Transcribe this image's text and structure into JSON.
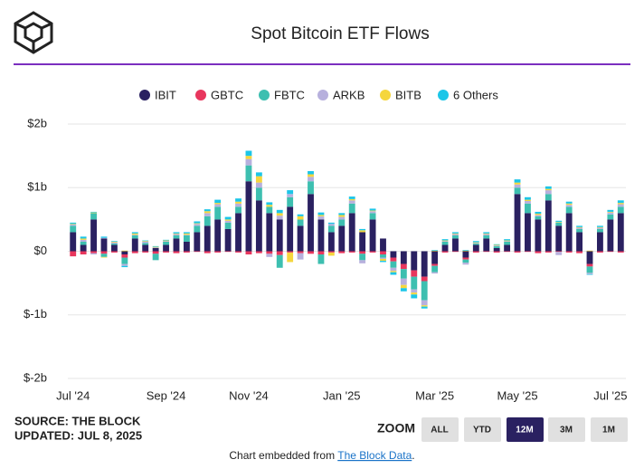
{
  "chart_data": {
    "type": "stacked_bar",
    "title": "Spot Bitcoin ETF Flows",
    "categories": [
      "Jul '24",
      null,
      null,
      null,
      null,
      null,
      null,
      null,
      null,
      "Sep '24",
      null,
      null,
      null,
      null,
      null,
      null,
      null,
      "Nov '24",
      null,
      null,
      null,
      null,
      null,
      null,
      null,
      null,
      "Jan '25",
      null,
      null,
      null,
      null,
      null,
      null,
      null,
      null,
      "Mar '25",
      null,
      null,
      null,
      null,
      null,
      null,
      null,
      "May '25",
      null,
      null,
      null,
      null,
      null,
      null,
      null,
      null,
      "Jul '25",
      null
    ],
    "series": [
      {
        "name": "IBIT",
        "color": "#2a2161",
        "values": [
          0.3,
          0.1,
          0.5,
          0.2,
          0.1,
          -0.05,
          0.2,
          0.1,
          0.05,
          0.1,
          0.2,
          0.15,
          0.3,
          0.4,
          0.5,
          0.35,
          0.6,
          1.1,
          0.8,
          0.6,
          0.5,
          0.7,
          0.4,
          0.9,
          0.5,
          0.3,
          0.4,
          0.6,
          0.3,
          0.5,
          0.2,
          -0.1,
          -0.2,
          -0.3,
          -0.4,
          -0.2,
          0.1,
          0.2,
          -0.1,
          0.1,
          0.2,
          0.05,
          0.1,
          0.9,
          0.6,
          0.5,
          0.8,
          0.4,
          0.6,
          0.3,
          -0.2,
          0.3,
          0.5,
          0.6
        ]
      },
      {
        "name": "GBTC",
        "color": "#e8365d",
        "values": [
          -0.08,
          -0.05,
          -0.03,
          -0.04,
          -0.02,
          -0.05,
          -0.03,
          -0.02,
          -0.04,
          -0.02,
          -0.03,
          -0.02,
          -0.01,
          -0.03,
          -0.02,
          -0.01,
          -0.02,
          -0.05,
          -0.03,
          -0.04,
          -0.06,
          -0.02,
          -0.03,
          -0.04,
          -0.05,
          -0.02,
          -0.03,
          -0.02,
          -0.04,
          -0.02,
          -0.05,
          -0.06,
          -0.08,
          -0.1,
          -0.07,
          -0.03,
          -0.02,
          -0.01,
          -0.03,
          -0.02,
          -0.01,
          -0.02,
          -0.01,
          -0.02,
          -0.01,
          -0.03,
          -0.02,
          -0.01,
          -0.02,
          -0.03,
          -0.04,
          -0.02,
          -0.01,
          -0.02
        ]
      },
      {
        "name": "FBTC",
        "color": "#3dbfb0",
        "values": [
          0.1,
          0.05,
          0.1,
          -0.05,
          0.02,
          -0.1,
          0.05,
          0.03,
          -0.1,
          0.05,
          0.05,
          0.1,
          0.1,
          0.15,
          0.2,
          0.1,
          0.1,
          0.25,
          0.2,
          0.1,
          -0.2,
          0.15,
          0.1,
          0.2,
          -0.15,
          0.1,
          0.1,
          0.15,
          -0.1,
          0.1,
          -0.05,
          -0.1,
          -0.15,
          -0.2,
          -0.3,
          -0.1,
          0.05,
          0.05,
          -0.05,
          0.02,
          0.05,
          0.03,
          0.05,
          0.1,
          0.15,
          0.05,
          0.1,
          0.05,
          0.1,
          0.05,
          -0.1,
          0.05,
          0.08,
          0.1
        ]
      },
      {
        "name": "ARKB",
        "color": "#b7b0dd",
        "values": [
          0.02,
          0.03,
          -0.02,
          0.01,
          0.02,
          -0.03,
          0.01,
          0.02,
          0.01,
          0.01,
          0.02,
          0.01,
          0.03,
          0.05,
          0.04,
          0.03,
          0.05,
          0.1,
          0.08,
          -0.05,
          0.06,
          0.05,
          -0.1,
          0.07,
          0.05,
          0.03,
          0.04,
          0.05,
          -0.05,
          0.03,
          -0.02,
          -0.05,
          -0.1,
          -0.05,
          -0.08,
          -0.02,
          0.01,
          0.02,
          -0.03,
          0.01,
          0.02,
          0.01,
          0.01,
          0.05,
          0.04,
          0.02,
          0.06,
          -0.05,
          0.03,
          0.02,
          -0.02,
          0.02,
          0.03,
          0.04
        ]
      },
      {
        "name": "BITB",
        "color": "#f5d63d",
        "values": [
          0.01,
          0.02,
          0.01,
          -0.01,
          0.01,
          0.01,
          0.02,
          0.01,
          0.01,
          0.01,
          0.01,
          0.02,
          0.01,
          0.03,
          0.02,
          0.02,
          0.03,
          0.05,
          0.1,
          0.03,
          0.04,
          -0.15,
          0.05,
          0.04,
          0.02,
          -0.05,
          0.03,
          0.02,
          0.03,
          0.01,
          -0.03,
          -0.02,
          -0.05,
          -0.03,
          -0.02,
          0.01,
          0.01,
          0.01,
          0.01,
          0.01,
          0.01,
          0.01,
          0.01,
          0.03,
          0.02,
          0.02,
          0.02,
          0.01,
          0.02,
          0.01,
          0.01,
          0.01,
          0.01,
          0.02
        ]
      },
      {
        "name": "6 Others",
        "color": "#1cc6e8",
        "values": [
          0.02,
          0.03,
          0.01,
          0.02,
          0.01,
          -0.02,
          0.02,
          0.01,
          0.01,
          0.01,
          0.02,
          0.02,
          0.03,
          0.03,
          0.05,
          0.04,
          0.05,
          0.08,
          0.06,
          0.04,
          0.05,
          0.06,
          0.03,
          0.05,
          0.04,
          0.02,
          0.03,
          0.04,
          0.02,
          0.03,
          -0.02,
          -0.04,
          -0.05,
          -0.06,
          -0.03,
          0.01,
          0.02,
          0.02,
          0.01,
          0.02,
          0.02,
          0.01,
          0.02,
          0.05,
          0.04,
          0.03,
          0.04,
          0.02,
          0.03,
          0.02,
          -0.01,
          0.02,
          0.03,
          0.04
        ]
      }
    ],
    "ylim": [
      -2,
      2
    ],
    "yticks": [
      {
        "value": -2,
        "label": "$-2b"
      },
      {
        "value": -1,
        "label": "$-1b"
      },
      {
        "value": 0,
        "label": "$0"
      },
      {
        "value": 1,
        "label": "$1b"
      },
      {
        "value": 2,
        "label": "$2b"
      }
    ],
    "grid": true
  },
  "source": "SOURCE: THE BLOCK",
  "updated": "UPDATED: JUL 8, 2025",
  "zoom": {
    "label": "ZOOM",
    "buttons": [
      "ALL",
      "YTD",
      "12M",
      "3M",
      "1M"
    ]
  },
  "footer": {
    "text": "Chart embedded from",
    "link": "The Block Data",
    "end": "."
  }
}
